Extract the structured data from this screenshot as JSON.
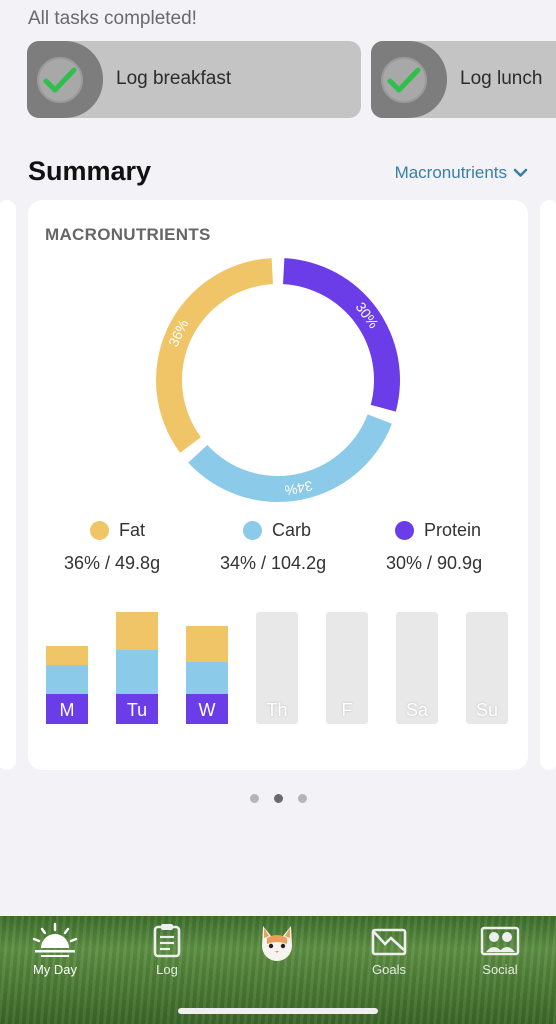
{
  "tasks": {
    "header": "All tasks completed!",
    "items": [
      {
        "label": "Log breakfast"
      },
      {
        "label": "Log lunch"
      }
    ]
  },
  "summary": {
    "title": "Summary",
    "selector": "Macronutrients"
  },
  "macros_card": {
    "title": "MACRONUTRIENTS",
    "legend": [
      {
        "name": "Fat",
        "value": "36% / 49.8g",
        "color": "#f0c567"
      },
      {
        "name": "Carb",
        "value": "34% / 104.2g",
        "color": "#8ccaea"
      },
      {
        "name": "Protein",
        "value": "30% / 90.9g",
        "color": "#6a3de8"
      }
    ],
    "donut_labels": [
      "36%",
      "34%",
      "30%"
    ]
  },
  "chart_data": {
    "type": "pie",
    "title": "MACRONUTRIENTS",
    "slices": [
      {
        "name": "Fat",
        "value": 36
      },
      {
        "name": "Carb",
        "value": 34
      },
      {
        "name": "Protein",
        "value": 30
      }
    ]
  },
  "week_chart": {
    "days": [
      "M",
      "Tu",
      "W",
      "Th",
      "F",
      "Sa",
      "Su"
    ]
  },
  "week_chart_data": {
    "type": "bar",
    "categories": [
      "M",
      "Tu",
      "W",
      "Th",
      "F",
      "Sa",
      "Su"
    ],
    "series": [
      {
        "name": "Protein",
        "values": [
          0.25,
          0.25,
          0.25,
          0,
          0,
          0,
          0
        ]
      },
      {
        "name": "Carb",
        "values": [
          0.24,
          0.37,
          0.27,
          0,
          0,
          0,
          0
        ]
      },
      {
        "name": "Fat",
        "values": [
          0.16,
          0.32,
          0.3,
          0,
          0,
          0,
          0
        ]
      }
    ]
  },
  "tabs": [
    {
      "label": "My Day",
      "icon": "sunrise-icon"
    },
    {
      "label": "Log",
      "icon": "clipboard-icon"
    },
    {
      "label": "",
      "icon": "cat-avatar-icon"
    },
    {
      "label": "Goals",
      "icon": "chart-envelope-icon"
    },
    {
      "label": "Social",
      "icon": "people-icon"
    }
  ]
}
